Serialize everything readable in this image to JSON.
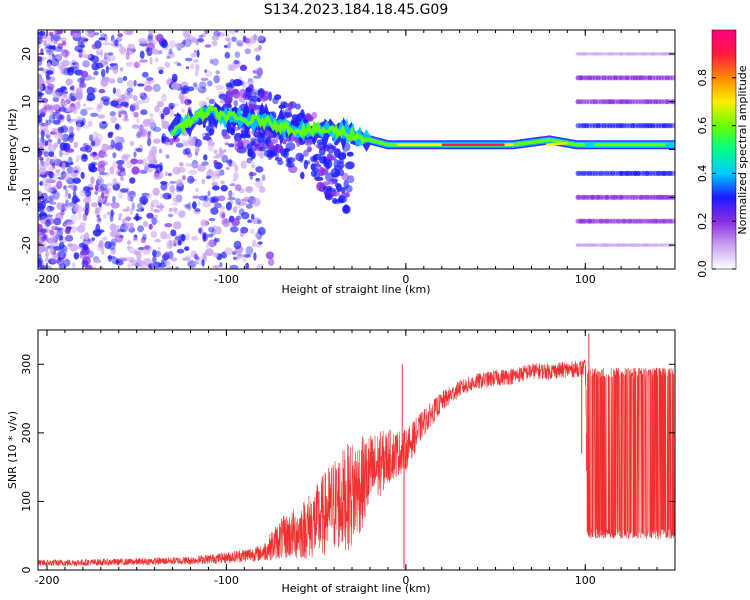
{
  "title": "S134.2023.184.18.45.G09",
  "chart_data": [
    {
      "type": "heatmap",
      "xlabel": "Height of straight line (km)",
      "ylabel": "Frequency (Hz)",
      "xlim": [
        -205,
        150
      ],
      "ylim": [
        -25,
        25
      ],
      "xticks": [
        "-200",
        "-100",
        "0",
        "100"
      ],
      "yticks": [
        "20",
        "10",
        "0",
        "-10",
        "-20"
      ],
      "colorbar": {
        "label": "Normalized spectral amplitude",
        "range": [
          0,
          1
        ],
        "ticks": [
          "0.0",
          "0.2",
          "0.4",
          "0.6",
          "0.8"
        ],
        "colors": [
          "#ffffff",
          "#c9a0f0",
          "#8a2be2",
          "#1a1aff",
          "#00ccff",
          "#00ff88",
          "#66ff00",
          "#ffee00",
          "#ff8800",
          "#ff1a40",
          "#ff007f"
        ]
      },
      "ridge": {
        "x": [
          -130,
          -120,
          -110,
          -100,
          -90,
          -80,
          -70,
          -60,
          -50,
          -40,
          -30,
          -20,
          -10,
          0,
          20,
          40,
          60,
          80,
          95,
          110,
          130,
          150
        ],
        "freq": [
          4,
          6,
          8,
          7,
          6,
          6,
          5,
          4,
          4,
          4,
          3,
          2,
          1,
          1,
          1,
          1,
          1,
          2,
          1,
          1,
          1,
          1
        ]
      },
      "harmonics_hz": [
        -20,
        -15,
        -10,
        -5,
        0,
        5,
        10,
        15,
        20
      ]
    },
    {
      "type": "line",
      "xlabel": "Height of straight line (km)",
      "ylabel": "SNR (10 * v/v)",
      "xlim": [
        -205,
        150
      ],
      "ylim": [
        0,
        350
      ],
      "xticks": [
        "-200",
        "-100",
        "0",
        "100"
      ],
      "yticks": [
        "300",
        "200",
        "100",
        "0"
      ],
      "color": "#f03030",
      "envelope": {
        "x": [
          -205,
          -150,
          -120,
          -100,
          -80,
          -70,
          -60,
          -50,
          -40,
          -30,
          -20,
          -10,
          0,
          10,
          20,
          30,
          40,
          50,
          60,
          70,
          80,
          90,
          100,
          101,
          150
        ],
        "y": [
          10,
          12,
          14,
          18,
          25,
          45,
          55,
          70,
          95,
          110,
          140,
          165,
          175,
          215,
          245,
          265,
          275,
          280,
          283,
          290,
          290,
          292,
          295,
          170,
          170
        ],
        "noise": [
          5,
          5,
          6,
          8,
          12,
          30,
          40,
          55,
          70,
          80,
          60,
          40,
          30,
          20,
          15,
          12,
          12,
          12,
          12,
          12,
          12,
          12,
          12,
          125,
          125
        ]
      },
      "spikes": [
        {
          "x": -2,
          "y": 300
        },
        {
          "x": -1,
          "y": 2
        },
        {
          "x": 102,
          "y": 345
        },
        {
          "x": 98,
          "y": 170
        }
      ]
    }
  ]
}
